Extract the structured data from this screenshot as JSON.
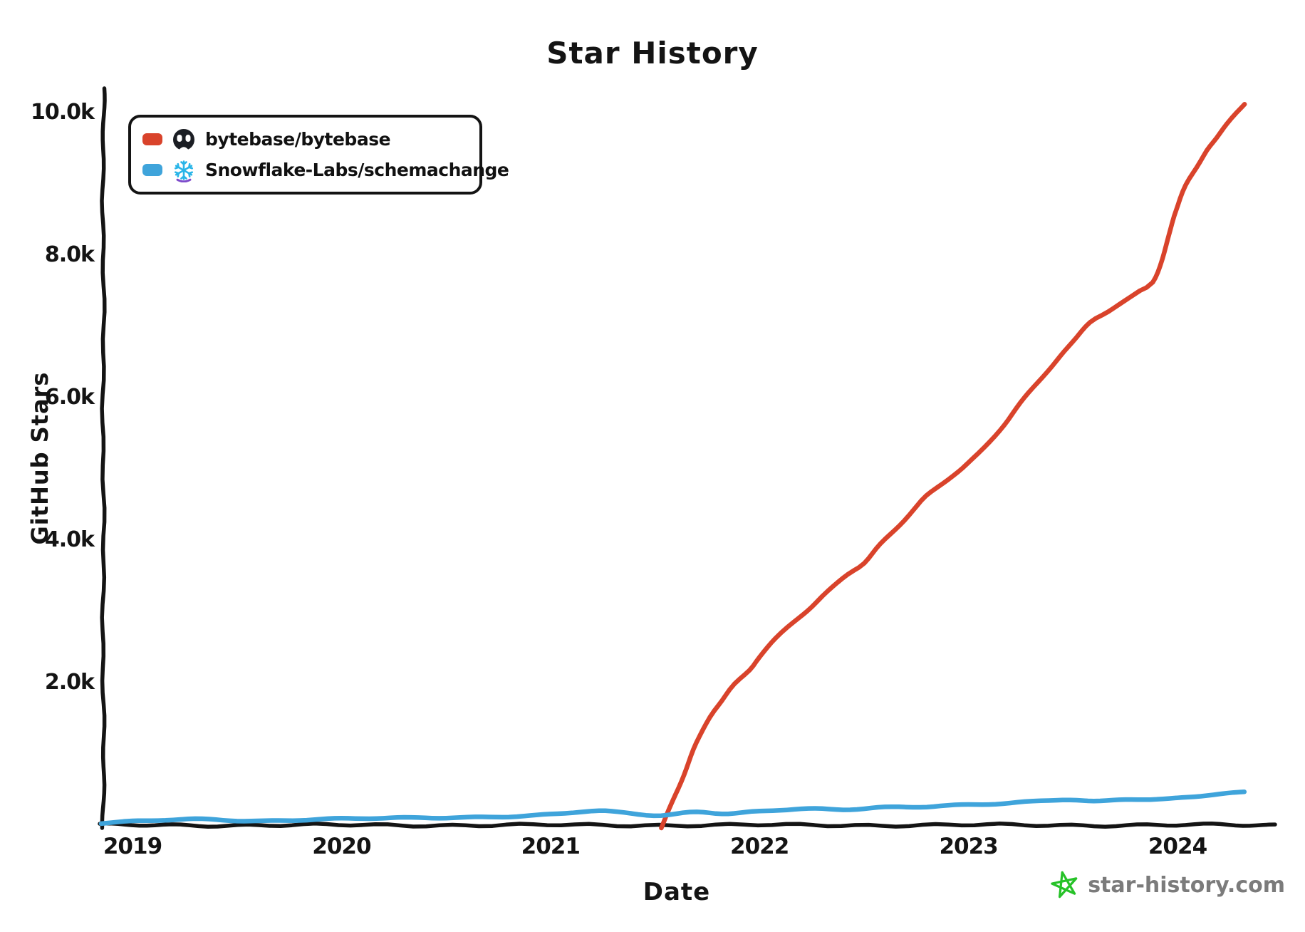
{
  "title": "Star History",
  "footer": {
    "site_label": "star-history.com",
    "star_icon_color": "#26c228",
    "text_color": "#7b7b7b"
  },
  "icons": {
    "legend_item_1": "bytebase-avatar",
    "legend_item_2": "snowflake-logo",
    "snowflake_blue": "#29b5e8",
    "snowflake_purple": "#7d4bcb",
    "avatar_ink": "#1b1e24"
  },
  "chart_data": {
    "type": "line",
    "title": "Star History",
    "xlabel": "Date",
    "ylabel": "GitHub Stars",
    "grid": false,
    "legend_position": "top-left",
    "xlim": [
      2018.85,
      2024.45
    ],
    "ylim": [
      0,
      10300
    ],
    "x_ticks": [
      {
        "value": 2019,
        "label": "2019"
      },
      {
        "value": 2020,
        "label": "2020"
      },
      {
        "value": 2021,
        "label": "2021"
      },
      {
        "value": 2022,
        "label": "2022"
      },
      {
        "value": 2023,
        "label": "2023"
      },
      {
        "value": 2024,
        "label": "2024"
      }
    ],
    "y_ticks": [
      {
        "value": 10000,
        "label": "10.0k"
      },
      {
        "value": 8000,
        "label": "8.0k"
      },
      {
        "value": 6000,
        "label": "6.0k"
      },
      {
        "value": 4000,
        "label": "4.0k"
      },
      {
        "value": 2000,
        "label": "2.0k"
      }
    ],
    "series": [
      {
        "name": "bytebase/bytebase",
        "color": "#d9432b",
        "points": [
          [
            2021.53,
            -40
          ],
          [
            2021.56,
            150
          ],
          [
            2021.6,
            430
          ],
          [
            2021.65,
            790
          ],
          [
            2021.7,
            1150
          ],
          [
            2021.76,
            1520
          ],
          [
            2021.82,
            1750
          ],
          [
            2021.88,
            1980
          ],
          [
            2021.95,
            2180
          ],
          [
            2022.0,
            2370
          ],
          [
            2022.08,
            2620
          ],
          [
            2022.16,
            2840
          ],
          [
            2022.25,
            3060
          ],
          [
            2022.33,
            3280
          ],
          [
            2022.42,
            3520
          ],
          [
            2022.5,
            3680
          ],
          [
            2022.58,
            3950
          ],
          [
            2022.67,
            4220
          ],
          [
            2022.75,
            4470
          ],
          [
            2022.8,
            4620
          ],
          [
            2022.88,
            4800
          ],
          [
            2022.95,
            4960
          ],
          [
            2023.0,
            5080
          ],
          [
            2023.08,
            5300
          ],
          [
            2023.17,
            5620
          ],
          [
            2023.25,
            5930
          ],
          [
            2023.33,
            6220
          ],
          [
            2023.42,
            6520
          ],
          [
            2023.5,
            6780
          ],
          [
            2023.58,
            7060
          ],
          [
            2023.67,
            7200
          ],
          [
            2023.75,
            7350
          ],
          [
            2023.82,
            7500
          ],
          [
            2023.88,
            7620
          ],
          [
            2023.93,
            7950
          ],
          [
            2023.97,
            8450
          ],
          [
            2024.0,
            8700
          ],
          [
            2024.04,
            8980
          ],
          [
            2024.09,
            9230
          ],
          [
            2024.14,
            9470
          ],
          [
            2024.19,
            9640
          ],
          [
            2024.24,
            9840
          ],
          [
            2024.28,
            9990
          ],
          [
            2024.32,
            10120
          ]
        ]
      },
      {
        "name": "Snowflake-Labs/schemachange",
        "color": "#3fa4db",
        "points": [
          [
            2018.85,
            30
          ],
          [
            2019.0,
            50
          ],
          [
            2019.3,
            80
          ],
          [
            2019.6,
            60
          ],
          [
            2019.9,
            85
          ],
          [
            2020.2,
            95
          ],
          [
            2020.5,
            105
          ],
          [
            2020.8,
            125
          ],
          [
            2021.0,
            150
          ],
          [
            2021.2,
            195
          ],
          [
            2021.35,
            170
          ],
          [
            2021.53,
            135
          ],
          [
            2021.7,
            190
          ],
          [
            2021.85,
            165
          ],
          [
            2022.0,
            195
          ],
          [
            2022.2,
            225
          ],
          [
            2022.4,
            215
          ],
          [
            2022.6,
            250
          ],
          [
            2022.8,
            265
          ],
          [
            2023.0,
            290
          ],
          [
            2023.2,
            305
          ],
          [
            2023.45,
            355
          ],
          [
            2023.6,
            330
          ],
          [
            2023.75,
            370
          ],
          [
            2023.9,
            360
          ],
          [
            2024.05,
            400
          ],
          [
            2024.2,
            430
          ],
          [
            2024.32,
            460
          ]
        ]
      }
    ]
  }
}
